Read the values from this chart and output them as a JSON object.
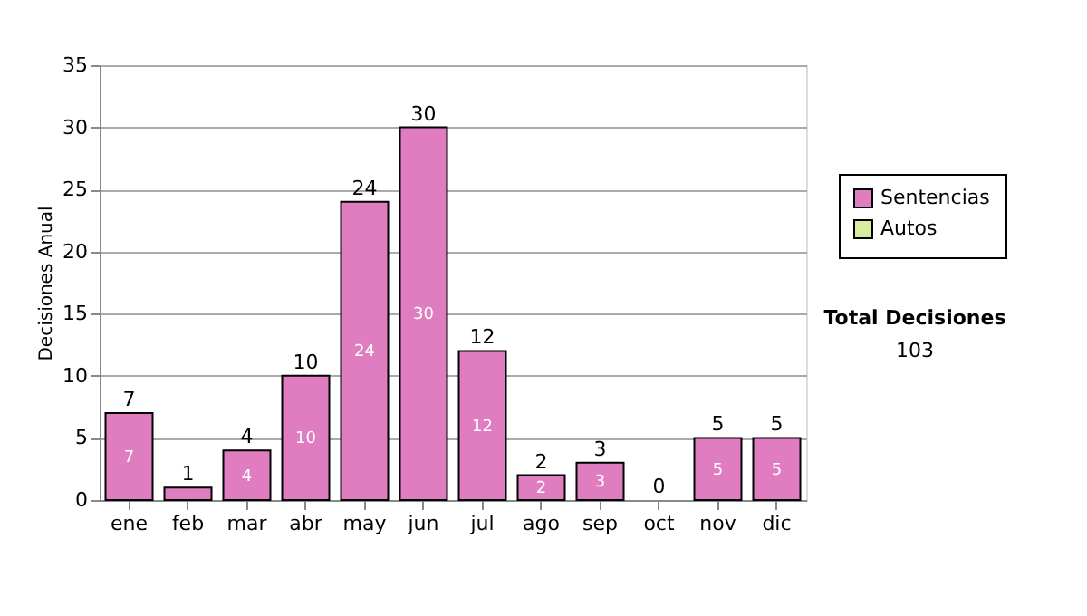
{
  "chart_data": {
    "type": "bar",
    "stacked": true,
    "ylabel": "Decisiones Anual",
    "categories": [
      "ene",
      "feb",
      "mar",
      "abr",
      "may",
      "jun",
      "jul",
      "ago",
      "sep",
      "oct",
      "nov",
      "dic"
    ],
    "series": [
      {
        "name": "Sentencias",
        "color": "#e07cc0",
        "values": [
          7,
          1,
          4,
          10,
          24,
          30,
          12,
          2,
          3,
          0,
          5,
          5
        ],
        "value_labels": [
          "7",
          null,
          "4",
          "10",
          "24",
          "30",
          "12",
          "2",
          "3",
          null,
          "5",
          "5"
        ]
      },
      {
        "name": "Autos",
        "color": "#d6eea0",
        "values": [
          0,
          0,
          0,
          0,
          0,
          0,
          0,
          0,
          0,
          0,
          0,
          0
        ]
      }
    ],
    "totals": [
      "7",
      "1",
      "4",
      "10",
      "24",
      "30",
      "12",
      "2",
      "3",
      "0",
      "5",
      "5"
    ],
    "ylim": [
      0,
      35
    ],
    "yticks": [
      0,
      5,
      10,
      15,
      20,
      25,
      30,
      35
    ],
    "grid": "y",
    "legend": "right",
    "annotations": [
      "Total Decisiones",
      "103"
    ]
  }
}
